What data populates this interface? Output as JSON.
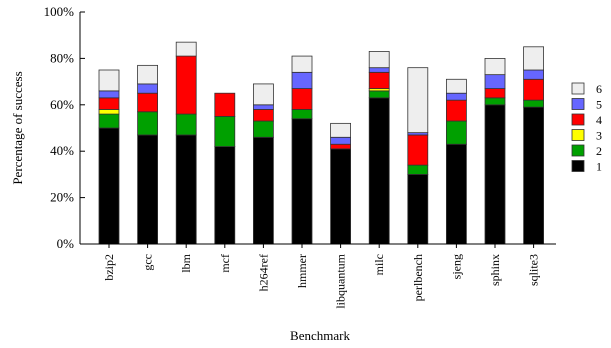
{
  "chart_data": {
    "type": "bar",
    "stacked": true,
    "title": "",
    "xlabel": "Benchmark",
    "ylabel": "Percentage of success",
    "ylim": [
      0,
      100
    ],
    "y_ticks": [
      0,
      20,
      40,
      60,
      80,
      100
    ],
    "y_tick_labels": [
      "0%",
      "20%",
      "40%",
      "60%",
      "80%",
      "100%"
    ],
    "grid": false,
    "legend_position": "right",
    "legend_order": [
      "6",
      "5",
      "4",
      "3",
      "2",
      "1"
    ],
    "categories": [
      "bzip2",
      "gcc",
      "lbm",
      "mcf",
      "h264ref",
      "hmmer",
      "libquantum",
      "milc",
      "perlbench",
      "sjeng",
      "sphinx",
      "sqlite3"
    ],
    "series": [
      {
        "name": "1",
        "color": "#000000",
        "values": [
          50,
          47,
          47,
          42,
          46,
          54,
          41,
          63,
          30,
          43,
          60,
          59
        ]
      },
      {
        "name": "2",
        "color": "#00a000",
        "values": [
          6,
          10,
          9,
          13,
          7,
          4,
          0,
          3,
          4,
          10,
          3,
          3
        ]
      },
      {
        "name": "3",
        "color": "#ffff00",
        "values": [
          2,
          0,
          0,
          0,
          0,
          0,
          0,
          1,
          0,
          0,
          0,
          0
        ]
      },
      {
        "name": "4",
        "color": "#ff0000",
        "values": [
          5,
          8,
          25,
          10,
          5,
          9,
          2,
          7,
          13,
          9,
          4,
          9
        ]
      },
      {
        "name": "5",
        "color": "#6666ff",
        "values": [
          3,
          4,
          0,
          0,
          2,
          7,
          3,
          2,
          1,
          3,
          6,
          4
        ]
      },
      {
        "name": "6",
        "color": "#eeeeee",
        "values": [
          9,
          8,
          6,
          0,
          9,
          7,
          6,
          7,
          28,
          6,
          7,
          10
        ]
      }
    ]
  }
}
